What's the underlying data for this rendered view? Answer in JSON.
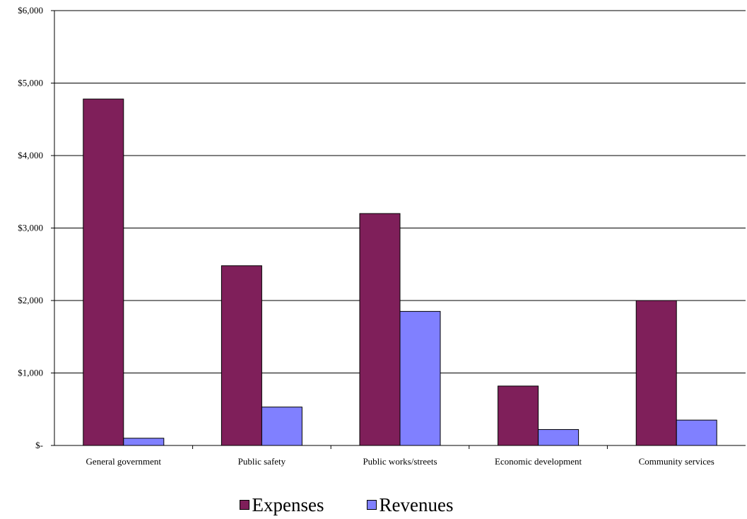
{
  "chart_data": {
    "type": "bar",
    "categories": [
      "General government",
      "Public safety",
      "Public works/streets",
      "Economic development",
      "Community services"
    ],
    "series": [
      {
        "name": "Expenses",
        "values": [
          4780,
          2480,
          3200,
          820,
          2000
        ],
        "color": "#7f1f5a"
      },
      {
        "name": "Revenues",
        "values": [
          100,
          530,
          1850,
          220,
          350
        ],
        "color": "#8080ff"
      }
    ],
    "y_ticks": [
      0,
      1000,
      2000,
      3000,
      4000,
      5000,
      6000
    ],
    "y_tick_labels": [
      "$-",
      "$1,000",
      "$2,000",
      "$3,000",
      "$4,000",
      "$5,000",
      "$6,000"
    ],
    "ylim": [
      0,
      6000
    ],
    "grid": true,
    "legend_position": "bottom"
  }
}
